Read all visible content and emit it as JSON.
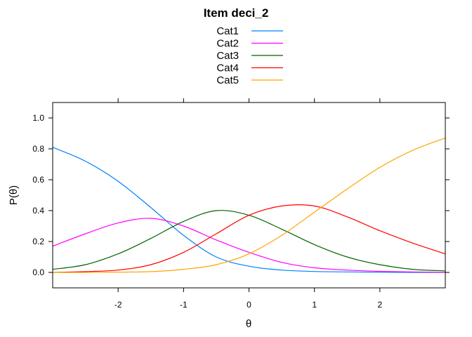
{
  "chart_data": {
    "type": "line",
    "title": "Item deci_2",
    "xlabel": "θ",
    "ylabel": "P(θ)",
    "xlim": [
      -3,
      3
    ],
    "ylim": [
      -0.1,
      1.1
    ],
    "x_ticks": [
      -2,
      -1,
      0,
      1,
      2
    ],
    "x_tick_labels": [
      "-2",
      "-1",
      "0",
      "1",
      "2"
    ],
    "y_ticks": [
      0.0,
      0.2,
      0.4,
      0.6,
      0.8,
      1.0
    ],
    "y_tick_labels": [
      "0.0",
      "0.2",
      "0.4",
      "0.6",
      "0.8",
      "1.0"
    ],
    "grid": false,
    "legend_position": "top-center",
    "x": [
      -3.0,
      -2.5,
      -2.0,
      -1.5,
      -1.0,
      -0.5,
      0.0,
      0.5,
      1.0,
      1.5,
      2.0,
      2.5,
      3.0
    ],
    "series": [
      {
        "name": "Cat1",
        "color": "#0080ff",
        "values": [
          0.81,
          0.72,
          0.59,
          0.42,
          0.24,
          0.1,
          0.04,
          0.015,
          0.006,
          0.003,
          0.001,
          0.0,
          0.0
        ]
      },
      {
        "name": "Cat2",
        "color": "#ff00ff",
        "values": [
          0.17,
          0.25,
          0.32,
          0.35,
          0.3,
          0.21,
          0.13,
          0.065,
          0.03,
          0.015,
          0.007,
          0.003,
          0.001
        ]
      },
      {
        "name": "Cat3",
        "color": "#006400",
        "values": [
          0.02,
          0.05,
          0.12,
          0.22,
          0.33,
          0.4,
          0.37,
          0.28,
          0.18,
          0.1,
          0.05,
          0.02,
          0.01
        ]
      },
      {
        "name": "Cat4",
        "color": "#ff0000",
        "values": [
          0.0,
          0.005,
          0.015,
          0.05,
          0.13,
          0.25,
          0.37,
          0.43,
          0.43,
          0.36,
          0.27,
          0.19,
          0.12
        ]
      },
      {
        "name": "Cat5",
        "color": "#ffa500",
        "values": [
          0.0,
          0.0,
          0.002,
          0.005,
          0.02,
          0.05,
          0.12,
          0.24,
          0.39,
          0.54,
          0.68,
          0.79,
          0.87
        ]
      }
    ]
  }
}
